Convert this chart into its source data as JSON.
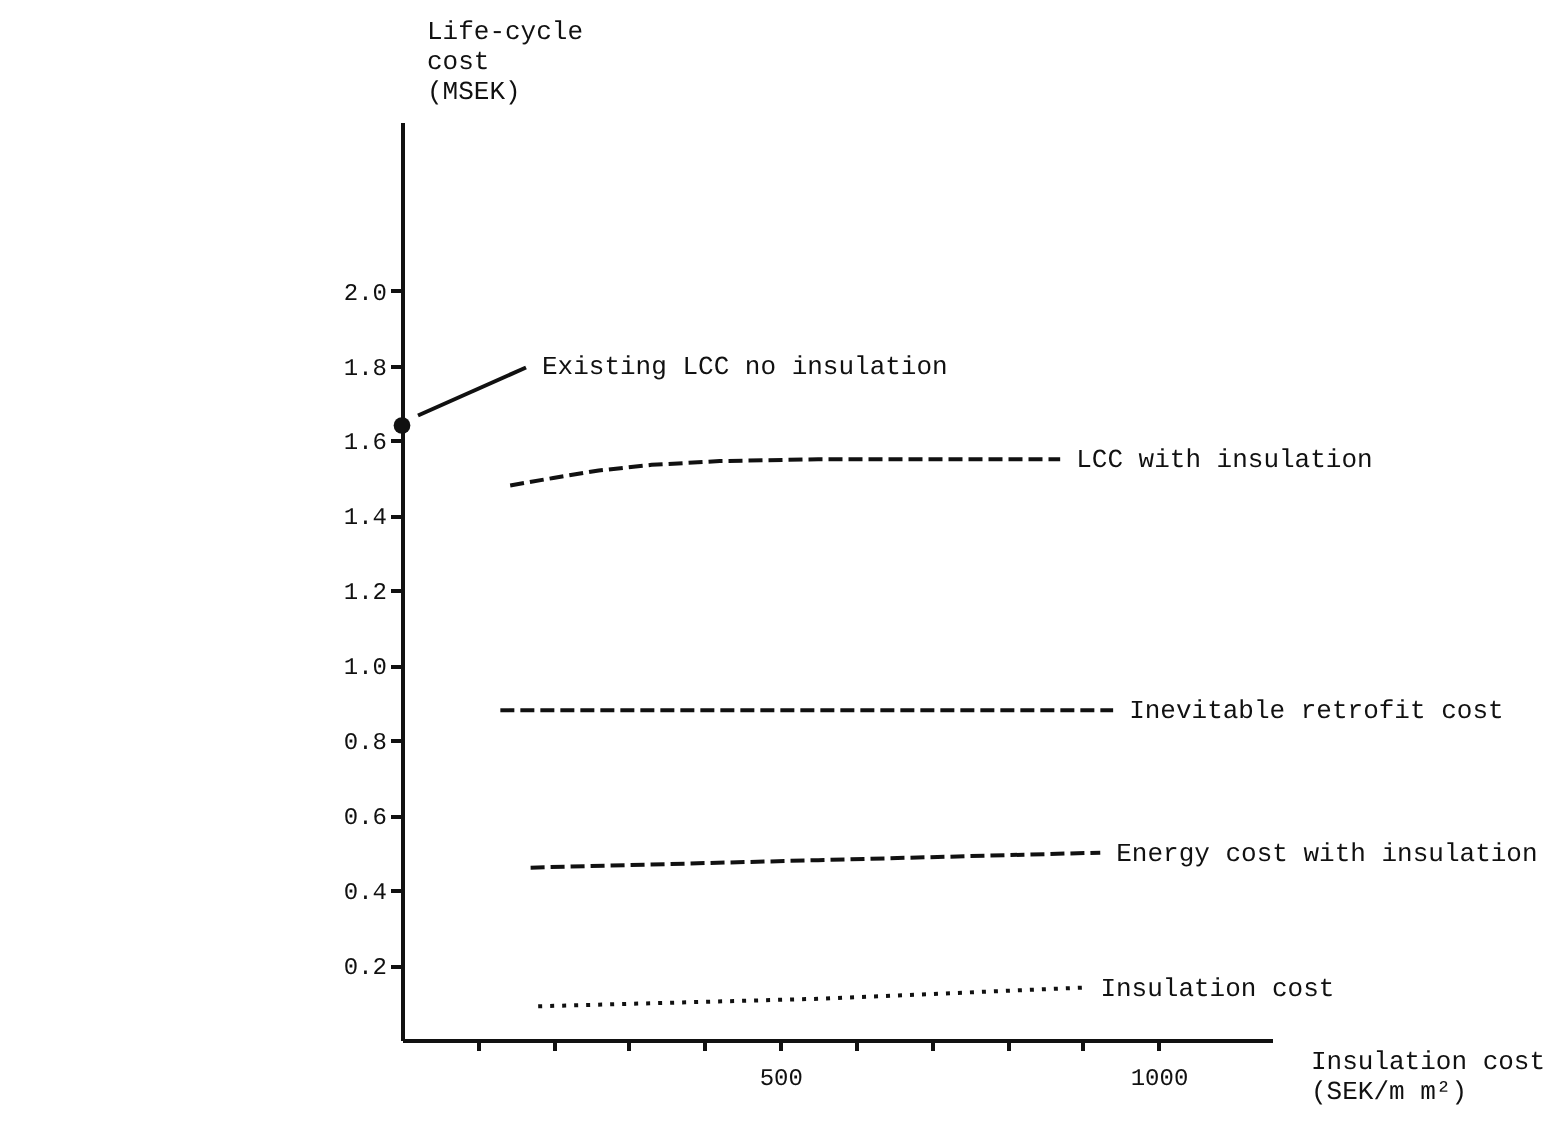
{
  "chart_data": {
    "type": "line",
    "xlabel": "Insulation cost\n(SEK/m m²)",
    "ylabel": "Life-cycle\ncost\n(MSEK)",
    "xlim": [
      0,
      1150
    ],
    "ylim": [
      0,
      2.45
    ],
    "xticks": [
      {
        "value": 100,
        "label": null
      },
      {
        "value": 200,
        "label": null
      },
      {
        "value": 300,
        "label": null
      },
      {
        "value": 400,
        "label": null
      },
      500,
      {
        "value": 600,
        "label": null
      },
      {
        "value": 700,
        "label": null
      },
      {
        "value": 800,
        "label": null
      },
      {
        "value": 900,
        "label": null
      },
      1000
    ],
    "yticks": [
      {
        "value": 0.2,
        "label": "0.2"
      },
      {
        "value": 0.4,
        "label": "0.4"
      },
      {
        "value": 0.6,
        "label": "0.6"
      },
      {
        "value": 0.8,
        "label": "0.8"
      },
      {
        "value": 1,
        "label": "1.0"
      },
      {
        "value": 1.2,
        "label": "1.2"
      },
      {
        "value": 1.4,
        "label": "1.4"
      },
      {
        "value": 1.6,
        "label": "1.6"
      },
      {
        "value": 1.8,
        "label": "1.8"
      },
      {
        "value": 2,
        "label": "2.0"
      }
    ],
    "grid": false,
    "series": [
      {
        "name": "LCC with insulation",
        "color": "#111111",
        "line_style": "dashed",
        "x": [
          143,
          200,
          260,
          330,
          420,
          550,
          700,
          870
        ],
        "values": [
          1.48,
          1.5,
          1.52,
          1.535,
          1.545,
          1.55,
          1.55,
          1.55
        ]
      },
      {
        "name": "Inevitable retrofit cost",
        "color": "#111111",
        "line_style": "dashed",
        "x": [
          130,
          940
        ],
        "values": [
          0.88,
          0.88
        ]
      },
      {
        "name": "Energy cost with insulation",
        "color": "#111111",
        "line_style": "dashed",
        "x": [
          170,
          550,
          923
        ],
        "values": [
          0.46,
          0.48,
          0.5
        ]
      },
      {
        "name": "Insulation cost",
        "color": "#111111",
        "line_style": "dotted",
        "x": [
          180,
          550,
          902
        ],
        "values": [
          0.09,
          0.11,
          0.14
        ]
      },
      {
        "type": "scatter",
        "marker": "circle",
        "color": "#111111",
        "x": [
          0
        ],
        "values": [
          1.64
        ]
      }
    ],
    "annotations": [
      "Existing LCC no insulation"
    ]
  }
}
